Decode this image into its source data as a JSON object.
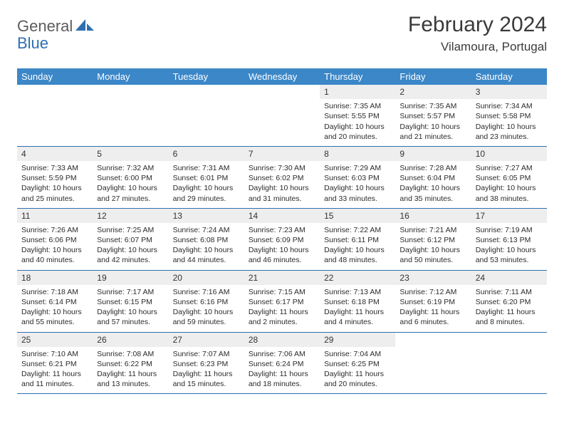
{
  "logo": {
    "part1": "General",
    "part2": "Blue"
  },
  "title": "February 2024",
  "location": "Vilamoura, Portugal",
  "colors": {
    "header_bg": "#3b87c8",
    "header_text": "#ffffff",
    "daynum_bg": "#eeeeee",
    "border": "#2f6fb0",
    "logo_gray": "#5c5c5c",
    "logo_blue": "#2f6fb0"
  },
  "day_headers": [
    "Sunday",
    "Monday",
    "Tuesday",
    "Wednesday",
    "Thursday",
    "Friday",
    "Saturday"
  ],
  "weeks": [
    [
      {
        "n": "",
        "sr": "",
        "ss": "",
        "dl": ""
      },
      {
        "n": "",
        "sr": "",
        "ss": "",
        "dl": ""
      },
      {
        "n": "",
        "sr": "",
        "ss": "",
        "dl": ""
      },
      {
        "n": "",
        "sr": "",
        "ss": "",
        "dl": ""
      },
      {
        "n": "1",
        "sr": "Sunrise: 7:35 AM",
        "ss": "Sunset: 5:55 PM",
        "dl": "Daylight: 10 hours and 20 minutes."
      },
      {
        "n": "2",
        "sr": "Sunrise: 7:35 AM",
        "ss": "Sunset: 5:57 PM",
        "dl": "Daylight: 10 hours and 21 minutes."
      },
      {
        "n": "3",
        "sr": "Sunrise: 7:34 AM",
        "ss": "Sunset: 5:58 PM",
        "dl": "Daylight: 10 hours and 23 minutes."
      }
    ],
    [
      {
        "n": "4",
        "sr": "Sunrise: 7:33 AM",
        "ss": "Sunset: 5:59 PM",
        "dl": "Daylight: 10 hours and 25 minutes."
      },
      {
        "n": "5",
        "sr": "Sunrise: 7:32 AM",
        "ss": "Sunset: 6:00 PM",
        "dl": "Daylight: 10 hours and 27 minutes."
      },
      {
        "n": "6",
        "sr": "Sunrise: 7:31 AM",
        "ss": "Sunset: 6:01 PM",
        "dl": "Daylight: 10 hours and 29 minutes."
      },
      {
        "n": "7",
        "sr": "Sunrise: 7:30 AM",
        "ss": "Sunset: 6:02 PM",
        "dl": "Daylight: 10 hours and 31 minutes."
      },
      {
        "n": "8",
        "sr": "Sunrise: 7:29 AM",
        "ss": "Sunset: 6:03 PM",
        "dl": "Daylight: 10 hours and 33 minutes."
      },
      {
        "n": "9",
        "sr": "Sunrise: 7:28 AM",
        "ss": "Sunset: 6:04 PM",
        "dl": "Daylight: 10 hours and 35 minutes."
      },
      {
        "n": "10",
        "sr": "Sunrise: 7:27 AM",
        "ss": "Sunset: 6:05 PM",
        "dl": "Daylight: 10 hours and 38 minutes."
      }
    ],
    [
      {
        "n": "11",
        "sr": "Sunrise: 7:26 AM",
        "ss": "Sunset: 6:06 PM",
        "dl": "Daylight: 10 hours and 40 minutes."
      },
      {
        "n": "12",
        "sr": "Sunrise: 7:25 AM",
        "ss": "Sunset: 6:07 PM",
        "dl": "Daylight: 10 hours and 42 minutes."
      },
      {
        "n": "13",
        "sr": "Sunrise: 7:24 AM",
        "ss": "Sunset: 6:08 PM",
        "dl": "Daylight: 10 hours and 44 minutes."
      },
      {
        "n": "14",
        "sr": "Sunrise: 7:23 AM",
        "ss": "Sunset: 6:09 PM",
        "dl": "Daylight: 10 hours and 46 minutes."
      },
      {
        "n": "15",
        "sr": "Sunrise: 7:22 AM",
        "ss": "Sunset: 6:11 PM",
        "dl": "Daylight: 10 hours and 48 minutes."
      },
      {
        "n": "16",
        "sr": "Sunrise: 7:21 AM",
        "ss": "Sunset: 6:12 PM",
        "dl": "Daylight: 10 hours and 50 minutes."
      },
      {
        "n": "17",
        "sr": "Sunrise: 7:19 AM",
        "ss": "Sunset: 6:13 PM",
        "dl": "Daylight: 10 hours and 53 minutes."
      }
    ],
    [
      {
        "n": "18",
        "sr": "Sunrise: 7:18 AM",
        "ss": "Sunset: 6:14 PM",
        "dl": "Daylight: 10 hours and 55 minutes."
      },
      {
        "n": "19",
        "sr": "Sunrise: 7:17 AM",
        "ss": "Sunset: 6:15 PM",
        "dl": "Daylight: 10 hours and 57 minutes."
      },
      {
        "n": "20",
        "sr": "Sunrise: 7:16 AM",
        "ss": "Sunset: 6:16 PM",
        "dl": "Daylight: 10 hours and 59 minutes."
      },
      {
        "n": "21",
        "sr": "Sunrise: 7:15 AM",
        "ss": "Sunset: 6:17 PM",
        "dl": "Daylight: 11 hours and 2 minutes."
      },
      {
        "n": "22",
        "sr": "Sunrise: 7:13 AM",
        "ss": "Sunset: 6:18 PM",
        "dl": "Daylight: 11 hours and 4 minutes."
      },
      {
        "n": "23",
        "sr": "Sunrise: 7:12 AM",
        "ss": "Sunset: 6:19 PM",
        "dl": "Daylight: 11 hours and 6 minutes."
      },
      {
        "n": "24",
        "sr": "Sunrise: 7:11 AM",
        "ss": "Sunset: 6:20 PM",
        "dl": "Daylight: 11 hours and 8 minutes."
      }
    ],
    [
      {
        "n": "25",
        "sr": "Sunrise: 7:10 AM",
        "ss": "Sunset: 6:21 PM",
        "dl": "Daylight: 11 hours and 11 minutes."
      },
      {
        "n": "26",
        "sr": "Sunrise: 7:08 AM",
        "ss": "Sunset: 6:22 PM",
        "dl": "Daylight: 11 hours and 13 minutes."
      },
      {
        "n": "27",
        "sr": "Sunrise: 7:07 AM",
        "ss": "Sunset: 6:23 PM",
        "dl": "Daylight: 11 hours and 15 minutes."
      },
      {
        "n": "28",
        "sr": "Sunrise: 7:06 AM",
        "ss": "Sunset: 6:24 PM",
        "dl": "Daylight: 11 hours and 18 minutes."
      },
      {
        "n": "29",
        "sr": "Sunrise: 7:04 AM",
        "ss": "Sunset: 6:25 PM",
        "dl": "Daylight: 11 hours and 20 minutes."
      },
      {
        "n": "",
        "sr": "",
        "ss": "",
        "dl": ""
      },
      {
        "n": "",
        "sr": "",
        "ss": "",
        "dl": ""
      }
    ]
  ]
}
